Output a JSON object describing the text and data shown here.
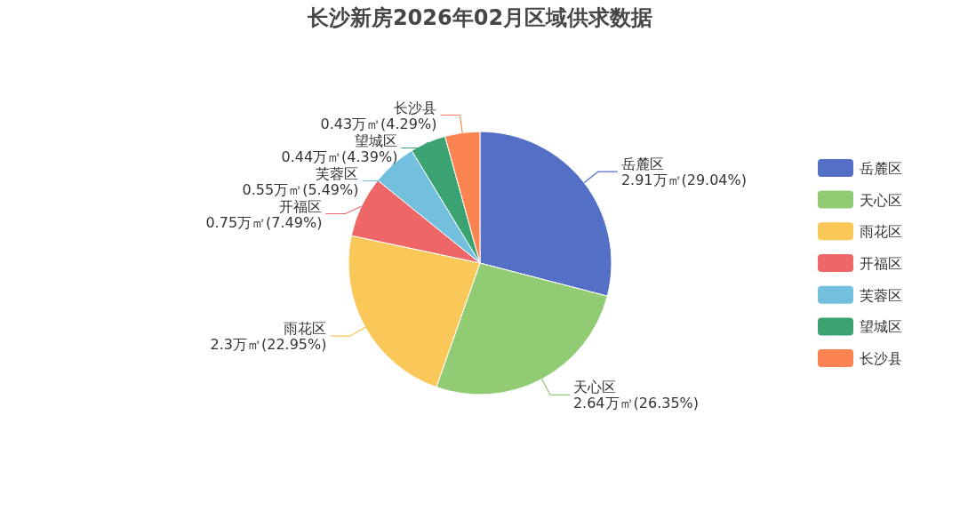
{
  "chart_data": {
    "type": "pie",
    "title": "长沙新房2026年02月区域供求数据",
    "categories": [
      "岳麓区",
      "天心区",
      "雨花区",
      "开福区",
      "芙蓉区",
      "望城区",
      "长沙县"
    ],
    "values": [
      2.91,
      2.64,
      2.3,
      0.75,
      0.55,
      0.44,
      0.43
    ],
    "value_labels": [
      "2.91万㎡(29.04%)",
      "2.64万㎡(26.35%)",
      "2.3万㎡(22.95%)",
      "0.75万㎡(7.49%)",
      "0.55万㎡(5.49%)",
      "0.44万㎡(4.39%)",
      "0.43万㎡(4.29%)"
    ],
    "colors": [
      "#5470c6",
      "#91cc75",
      "#fac858",
      "#ee6666",
      "#73c0de",
      "#3ba272",
      "#fc8452"
    ],
    "legend": "right"
  }
}
